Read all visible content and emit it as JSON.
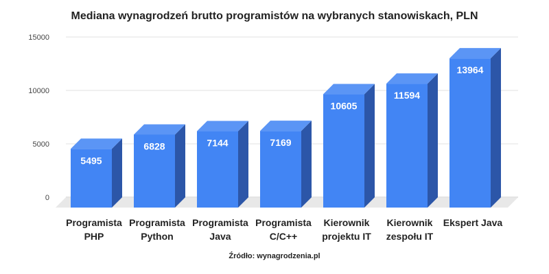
{
  "chart_data": {
    "type": "bar",
    "title": "Mediana wynagrodzeń brutto programistów na wybranych stanowiskach, PLN",
    "categories": [
      [
        "Programista",
        "PHP"
      ],
      [
        "Programista",
        "Python"
      ],
      [
        "Programista",
        "Java"
      ],
      [
        "Programista",
        "C/C++"
      ],
      [
        "Kierownik",
        "projektu IT"
      ],
      [
        "Kierownik",
        "zespołu IT"
      ],
      [
        "Ekspert Java"
      ]
    ],
    "values": [
      5495,
      6828,
      7144,
      7169,
      10605,
      11594,
      13964
    ],
    "ylim": [
      0,
      15000
    ],
    "yticks": [
      0,
      5000,
      10000,
      15000
    ],
    "grid": true,
    "style": "3d",
    "colors": {
      "front": "#4285f4",
      "top": "#5b95f5",
      "side": "#2c56a8",
      "floor": "#e8e8e8",
      "grid": "#e0e0e0"
    },
    "source": "Źródło: wynagrodzenia.pl"
  }
}
